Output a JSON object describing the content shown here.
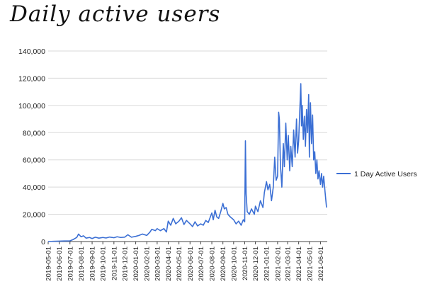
{
  "chart_data": {
    "type": "line",
    "title": "Daily active users",
    "series_color": "#3b6fd4",
    "legend_position": "right",
    "ylim": [
      0,
      140000
    ],
    "y_ticks": [
      0,
      20000,
      40000,
      60000,
      80000,
      100000,
      120000,
      140000
    ],
    "y_tick_labels": [
      "0",
      "20,000",
      "40,000",
      "60,000",
      "80,000",
      "100,000",
      "120,000",
      "140,000"
    ],
    "x_range": [
      "2019-05-01",
      "2021-06-20"
    ],
    "x_tick_labels": [
      "2019-05-01",
      "2019-06-01",
      "2019-07-01",
      "2019-08-01",
      "2019-09-01",
      "2019-10-01",
      "2019-11-01",
      "2019-12-01",
      "2020-01-01",
      "2020-02-01",
      "2020-03-01",
      "2020-04-01",
      "2020-05-01",
      "2020-06-01",
      "2020-07-01",
      "2020-08-01",
      "2020-09-01",
      "2020-10-01",
      "2020-11-01",
      "2020-12-01",
      "2021-01-01",
      "2021-02-01",
      "2021-03-01",
      "2021-04-01",
      "2021-05-01",
      "2021-06-01"
    ],
    "grid": true,
    "series": [
      {
        "name": "1 Day Active Users",
        "points": [
          [
            "2019-05-01",
            0
          ],
          [
            "2019-05-15",
            200
          ],
          [
            "2019-06-01",
            300
          ],
          [
            "2019-06-15",
            400
          ],
          [
            "2019-07-01",
            500
          ],
          [
            "2019-07-10",
            1500
          ],
          [
            "2019-07-20",
            3000
          ],
          [
            "2019-07-25",
            5500
          ],
          [
            "2019-08-01",
            3500
          ],
          [
            "2019-08-08",
            4200
          ],
          [
            "2019-08-15",
            2500
          ],
          [
            "2019-08-25",
            3000
          ],
          [
            "2019-09-01",
            2200
          ],
          [
            "2019-09-10",
            3200
          ],
          [
            "2019-09-20",
            2500
          ],
          [
            "2019-10-01",
            3000
          ],
          [
            "2019-10-10",
            2600
          ],
          [
            "2019-10-20",
            3300
          ],
          [
            "2019-11-01",
            2800
          ],
          [
            "2019-11-10",
            3500
          ],
          [
            "2019-11-20",
            3000
          ],
          [
            "2019-12-01",
            3200
          ],
          [
            "2019-12-10",
            5000
          ],
          [
            "2019-12-20",
            3200
          ],
          [
            "2020-01-01",
            3800
          ],
          [
            "2020-01-10",
            4500
          ],
          [
            "2020-01-20",
            5500
          ],
          [
            "2020-02-01",
            4500
          ],
          [
            "2020-02-10",
            7000
          ],
          [
            "2020-02-15",
            9000
          ],
          [
            "2020-02-25",
            8000
          ],
          [
            "2020-03-01",
            9500
          ],
          [
            "2020-03-10",
            8000
          ],
          [
            "2020-03-20",
            9500
          ],
          [
            "2020-03-27",
            7000
          ],
          [
            "2020-04-01",
            15000
          ],
          [
            "2020-04-08",
            12000
          ],
          [
            "2020-04-15",
            17000
          ],
          [
            "2020-04-22",
            13000
          ],
          [
            "2020-05-01",
            15000
          ],
          [
            "2020-05-08",
            17500
          ],
          [
            "2020-05-15",
            12500
          ],
          [
            "2020-05-22",
            15500
          ],
          [
            "2020-06-01",
            13000
          ],
          [
            "2020-06-08",
            11000
          ],
          [
            "2020-06-15",
            14500
          ],
          [
            "2020-06-22",
            11500
          ],
          [
            "2020-07-01",
            13000
          ],
          [
            "2020-07-08",
            12000
          ],
          [
            "2020-07-15",
            15500
          ],
          [
            "2020-07-22",
            14000
          ],
          [
            "2020-08-01",
            21000
          ],
          [
            "2020-08-05",
            16000
          ],
          [
            "2020-08-10",
            23000
          ],
          [
            "2020-08-15",
            18000
          ],
          [
            "2020-08-20",
            17000
          ],
          [
            "2020-08-26",
            22000
          ],
          [
            "2020-09-01",
            28000
          ],
          [
            "2020-09-05",
            24000
          ],
          [
            "2020-09-10",
            25000
          ],
          [
            "2020-09-15",
            20000
          ],
          [
            "2020-09-22",
            18000
          ],
          [
            "2020-10-01",
            16000
          ],
          [
            "2020-10-08",
            13000
          ],
          [
            "2020-10-15",
            15000
          ],
          [
            "2020-10-22",
            12000
          ],
          [
            "2020-10-28",
            16000
          ],
          [
            "2020-11-01",
            14500
          ],
          [
            "2020-11-03",
            74000
          ],
          [
            "2020-11-05",
            35000
          ],
          [
            "2020-11-08",
            22000
          ],
          [
            "2020-11-14",
            20000
          ],
          [
            "2020-11-20",
            24000
          ],
          [
            "2020-11-28",
            20000
          ],
          [
            "2020-12-01",
            26000
          ],
          [
            "2020-12-08",
            22000
          ],
          [
            "2020-12-15",
            30000
          ],
          [
            "2020-12-22",
            25000
          ],
          [
            "2020-12-26",
            36000
          ],
          [
            "2021-01-01",
            44000
          ],
          [
            "2021-01-05",
            38000
          ],
          [
            "2021-01-10",
            42000
          ],
          [
            "2021-01-15",
            30000
          ],
          [
            "2021-01-20",
            40000
          ],
          [
            "2021-01-24",
            62000
          ],
          [
            "2021-01-28",
            45000
          ],
          [
            "2021-02-01",
            48000
          ],
          [
            "2021-02-04",
            95000
          ],
          [
            "2021-02-06",
            90000
          ],
          [
            "2021-02-09",
            56000
          ],
          [
            "2021-02-13",
            40000
          ],
          [
            "2021-02-17",
            72000
          ],
          [
            "2021-02-20",
            55000
          ],
          [
            "2021-02-24",
            87000
          ],
          [
            "2021-02-28",
            60000
          ],
          [
            "2021-03-03",
            78000
          ],
          [
            "2021-03-07",
            52000
          ],
          [
            "2021-03-10",
            70000
          ],
          [
            "2021-03-14",
            55000
          ],
          [
            "2021-03-18",
            82000
          ],
          [
            "2021-03-22",
            62000
          ],
          [
            "2021-03-26",
            90000
          ],
          [
            "2021-03-29",
            65000
          ],
          [
            "2021-04-01",
            74000
          ],
          [
            "2021-04-04",
            95000
          ],
          [
            "2021-04-07",
            116000
          ],
          [
            "2021-04-09",
            85000
          ],
          [
            "2021-04-11",
            100000
          ],
          [
            "2021-04-14",
            75000
          ],
          [
            "2021-04-17",
            92000
          ],
          [
            "2021-04-20",
            70000
          ],
          [
            "2021-04-23",
            97000
          ],
          [
            "2021-04-26",
            80000
          ],
          [
            "2021-04-29",
            108000
          ],
          [
            "2021-05-01",
            62000
          ],
          [
            "2021-05-04",
            102000
          ],
          [
            "2021-05-07",
            72000
          ],
          [
            "2021-05-10",
            93000
          ],
          [
            "2021-05-13",
            60000
          ],
          [
            "2021-05-16",
            66000
          ],
          [
            "2021-05-19",
            50000
          ],
          [
            "2021-05-22",
            60000
          ],
          [
            "2021-05-25",
            46000
          ],
          [
            "2021-05-28",
            52000
          ],
          [
            "2021-06-01",
            42000
          ],
          [
            "2021-06-04",
            50000
          ],
          [
            "2021-06-07",
            40000
          ],
          [
            "2021-06-10",
            48000
          ],
          [
            "2021-06-14",
            36000
          ],
          [
            "2021-06-18",
            25000
          ]
        ]
      }
    ]
  }
}
